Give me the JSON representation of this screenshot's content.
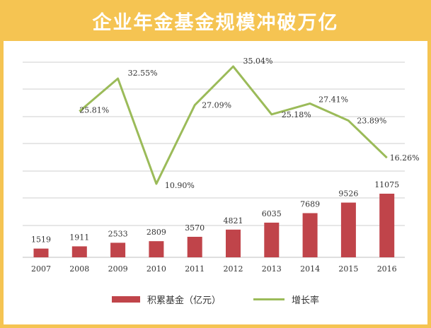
{
  "title": "企业年金基金规模冲破万亿",
  "colors": {
    "frame": "#f5c452",
    "bar": "#c0444a",
    "line": "#9bbb59",
    "grid": "#cfcfcf"
  },
  "legend": {
    "bar_label": "积累基金（亿元）",
    "line_label": "增长率"
  },
  "chart_data": {
    "type": "bar+line",
    "categories": [
      "2007",
      "2008",
      "2009",
      "2010",
      "2011",
      "2012",
      "2013",
      "2014",
      "2015",
      "2016"
    ],
    "series": [
      {
        "name": "积累基金（亿元）",
        "type": "bar",
        "values": [
          1519,
          1911,
          2533,
          2809,
          3570,
          4821,
          6035,
          7689,
          9526,
          11075
        ],
        "labels": [
          "1519",
          "1911",
          "2533",
          "2809",
          "3570",
          "4821",
          "6035",
          "7689",
          "9526",
          "11075"
        ]
      },
      {
        "name": "增长率",
        "type": "line",
        "values": [
          null,
          25.81,
          32.55,
          10.9,
          27.09,
          35.04,
          25.18,
          27.41,
          23.89,
          16.26
        ],
        "labels": [
          null,
          "25.81%",
          "32.55%",
          "10.90%",
          "27.09%",
          "35.04%",
          "25.18%",
          "27.41%",
          "23.89%",
          "16.26%"
        ]
      }
    ],
    "grid": true,
    "legend_position": "bottom"
  }
}
